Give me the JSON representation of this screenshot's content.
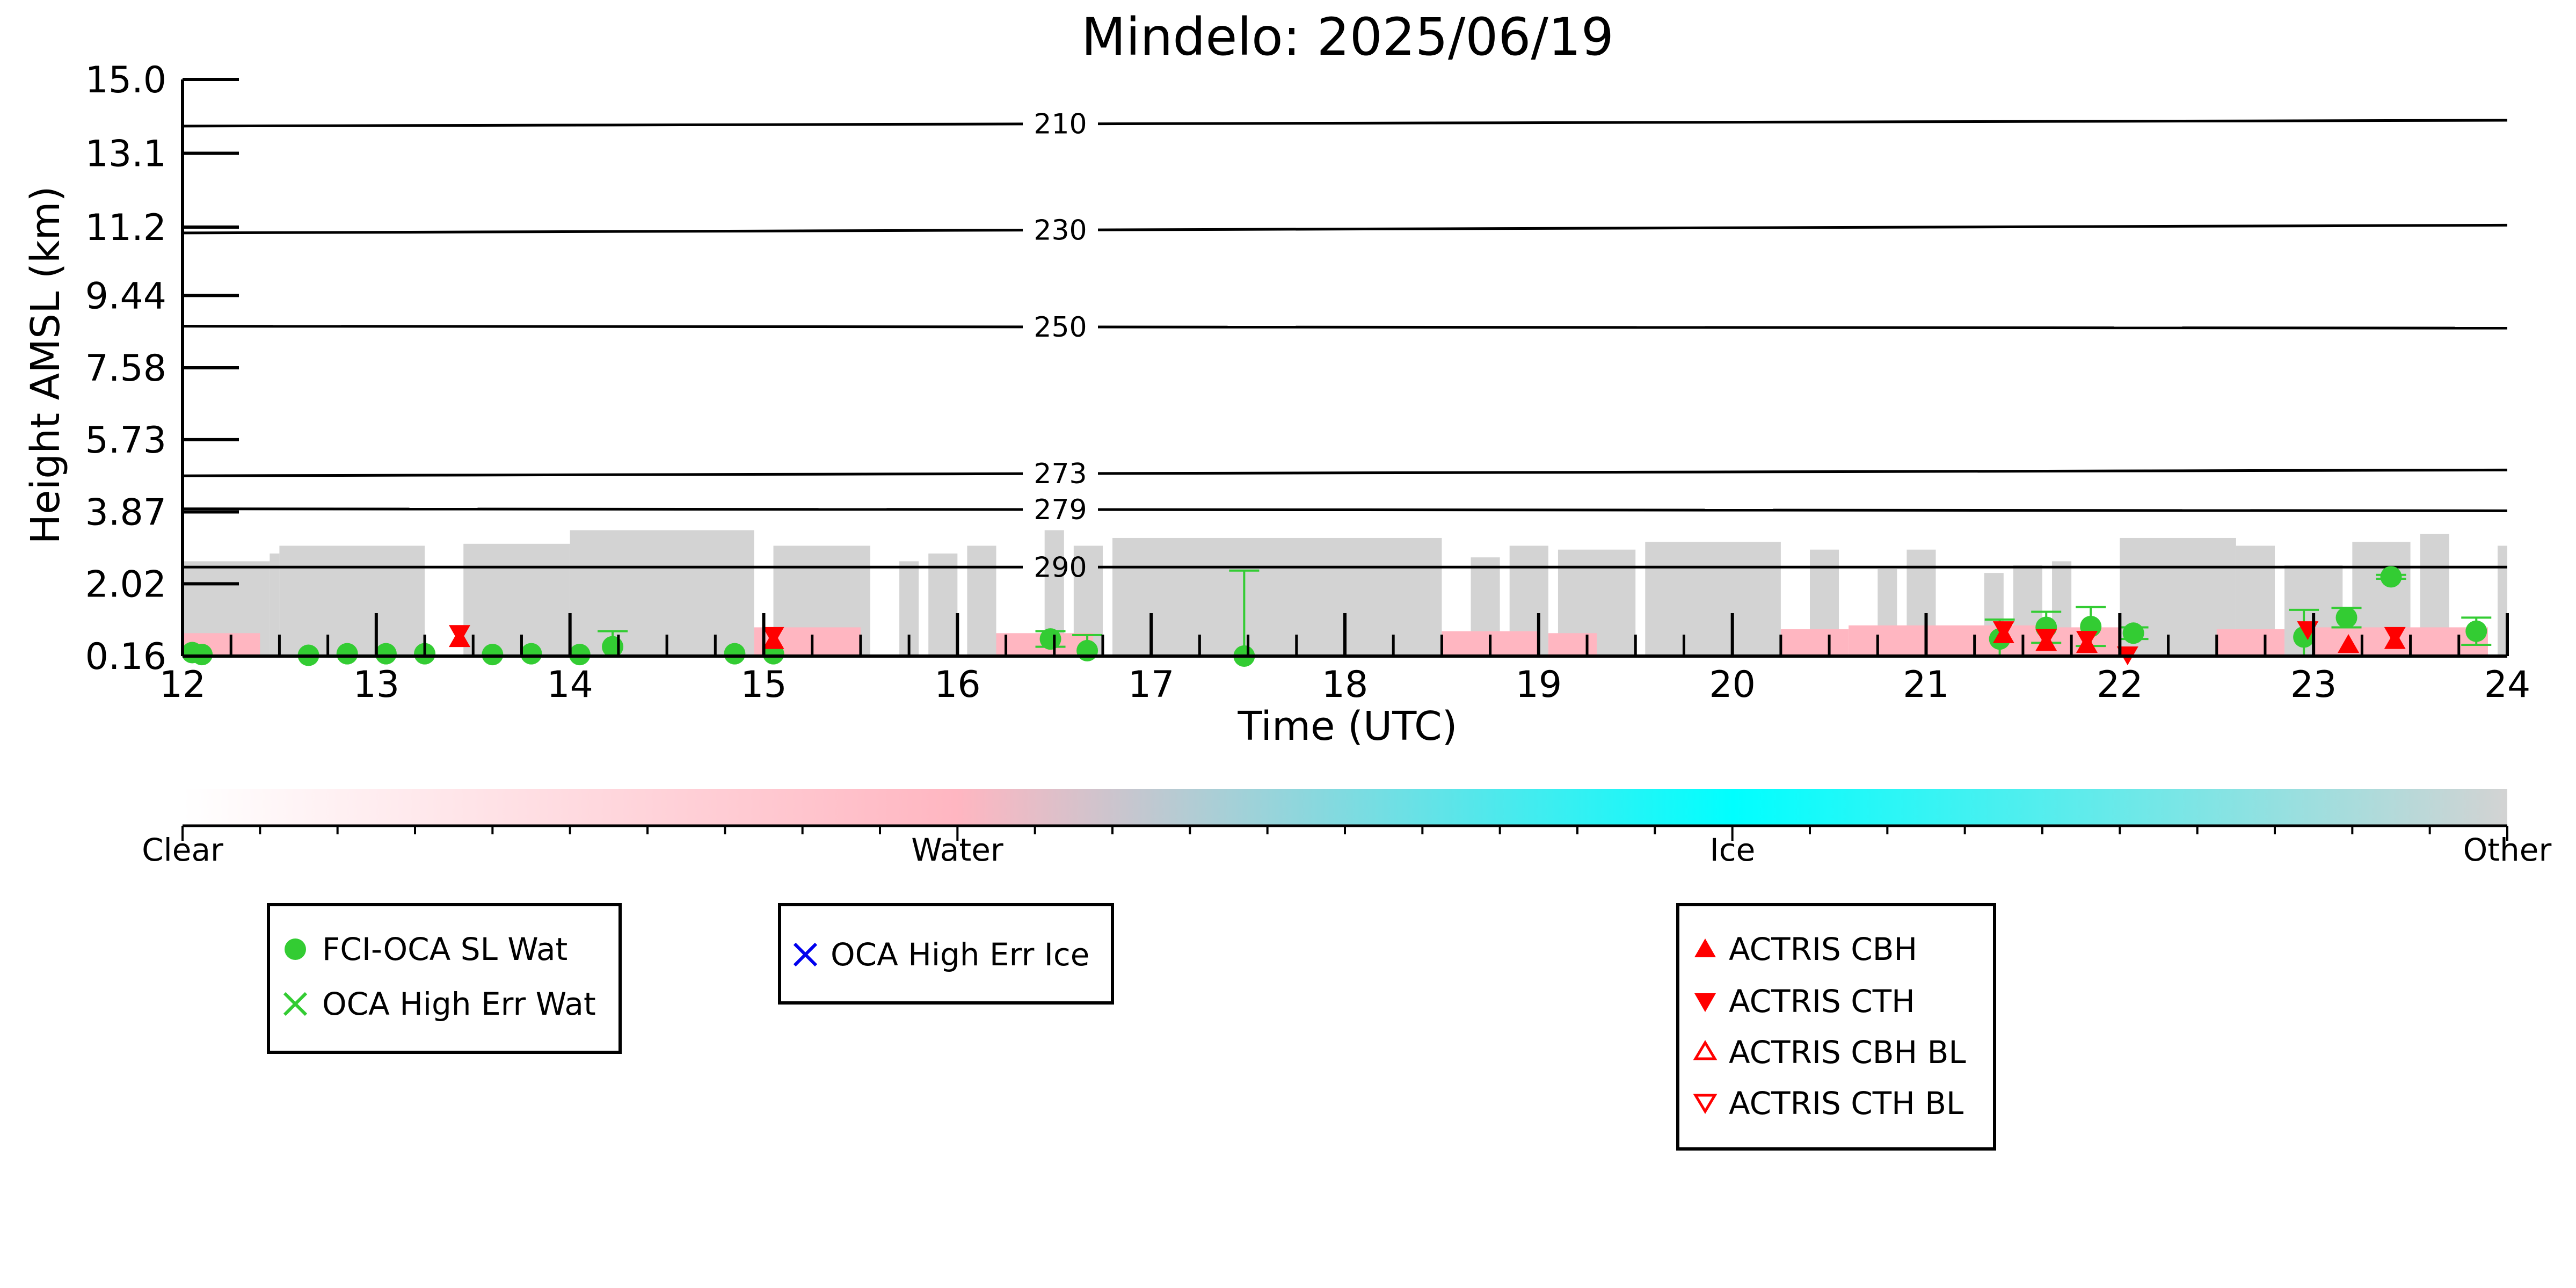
{
  "chart_data": {
    "type": "scatter",
    "title": "Mindelo: 2025/06/19",
    "xlabel": "Time (UTC)",
    "ylabel": "Height AMSL (km)",
    "xlim": [
      12,
      24
    ],
    "ylim": [
      0.16,
      15.0
    ],
    "x_ticks": [
      12,
      13,
      14,
      15,
      16,
      17,
      18,
      19,
      20,
      21,
      22,
      23,
      24
    ],
    "y_ticks": [
      "0.16",
      "2.02",
      "3.87",
      "5.73",
      "7.58",
      "9.44",
      "11.2",
      "13.1",
      "15.0"
    ],
    "y_tick_values": [
      0.16,
      2.02,
      3.87,
      5.73,
      7.58,
      9.44,
      11.2,
      13.1,
      15.0
    ],
    "grid": false,
    "background_cloud_mask": {
      "description_colors": {
        "clear": "#ffffff",
        "water": "#ffb6c1",
        "ice": "#00ffff",
        "other": "#d3d3d3"
      },
      "other_segments": [
        {
          "start": 12.0,
          "end": 12.45,
          "top": 2.6
        },
        {
          "start": 12.45,
          "end": 12.5,
          "top": 2.8
        },
        {
          "start": 12.5,
          "end": 13.25,
          "top": 3.0
        },
        {
          "start": 13.45,
          "end": 14.0,
          "top": 3.05
        },
        {
          "start": 14.0,
          "end": 14.95,
          "top": 3.4
        },
        {
          "start": 15.05,
          "end": 15.55,
          "top": 3.0
        },
        {
          "start": 15.7,
          "end": 15.8,
          "top": 2.6
        },
        {
          "start": 15.85,
          "end": 16.0,
          "top": 2.8
        },
        {
          "start": 16.05,
          "end": 16.2,
          "top": 3.0
        },
        {
          "start": 16.45,
          "end": 16.55,
          "top": 3.4
        },
        {
          "start": 16.6,
          "end": 16.75,
          "top": 3.0
        },
        {
          "start": 16.8,
          "end": 18.5,
          "top": 3.2
        },
        {
          "start": 18.65,
          "end": 18.8,
          "top": 2.7
        },
        {
          "start": 18.85,
          "end": 19.05,
          "top": 3.0
        },
        {
          "start": 19.1,
          "end": 19.5,
          "top": 2.9
        },
        {
          "start": 19.55,
          "end": 20.25,
          "top": 3.1
        },
        {
          "start": 20.4,
          "end": 20.55,
          "top": 2.9
        },
        {
          "start": 20.75,
          "end": 20.85,
          "top": 2.4
        },
        {
          "start": 20.9,
          "end": 21.05,
          "top": 2.9
        },
        {
          "start": 21.3,
          "end": 21.4,
          "top": 2.3
        },
        {
          "start": 21.45,
          "end": 21.6,
          "top": 2.5
        },
        {
          "start": 21.65,
          "end": 21.75,
          "top": 2.6
        },
        {
          "start": 22.0,
          "end": 22.6,
          "top": 3.2
        },
        {
          "start": 22.6,
          "end": 22.8,
          "top": 3.0
        },
        {
          "start": 22.85,
          "end": 23.15,
          "top": 2.5
        },
        {
          "start": 23.2,
          "end": 23.5,
          "top": 3.1
        },
        {
          "start": 23.55,
          "end": 23.7,
          "top": 3.3
        },
        {
          "start": 23.95,
          "end": 24.0,
          "top": 3.0
        }
      ],
      "water_segments": [
        {
          "start": 12.0,
          "end": 12.4,
          "top": 0.75
        },
        {
          "start": 14.95,
          "end": 15.5,
          "top": 0.9
        },
        {
          "start": 16.2,
          "end": 16.7,
          "top": 0.75
        },
        {
          "start": 18.5,
          "end": 19.0,
          "top": 0.8
        },
        {
          "start": 19.05,
          "end": 19.3,
          "top": 0.75
        },
        {
          "start": 20.25,
          "end": 20.6,
          "top": 0.85
        },
        {
          "start": 20.6,
          "end": 21.6,
          "top": 0.95
        },
        {
          "start": 21.6,
          "end": 22.0,
          "top": 0.9
        },
        {
          "start": 22.5,
          "end": 22.85,
          "top": 0.85
        },
        {
          "start": 23.0,
          "end": 23.9,
          "top": 0.9
        }
      ]
    },
    "contours": [
      {
        "label": "210",
        "y_start": 13.8,
        "y_end": 13.95
      },
      {
        "label": "230",
        "y_start": 11.05,
        "y_end": 11.25
      },
      {
        "label": "250",
        "y_start": 8.65,
        "y_end": 8.6
      },
      {
        "label": "273",
        "y_start": 4.8,
        "y_end": 4.95
      },
      {
        "label": "279",
        "y_start": 3.95,
        "y_end": 3.9
      },
      {
        "label": "290",
        "y_start": 2.45,
        "y_end": 2.45
      }
    ],
    "series": [
      {
        "name": "FCI-OCA SL Wat",
        "marker": "circle",
        "color": "#33cc33",
        "points": [
          {
            "x": 12.05,
            "y": 0.25
          },
          {
            "x": 12.1,
            "y": 0.2
          },
          {
            "x": 12.65,
            "y": 0.18
          },
          {
            "x": 12.85,
            "y": 0.22
          },
          {
            "x": 13.05,
            "y": 0.22
          },
          {
            "x": 13.25,
            "y": 0.22
          },
          {
            "x": 13.6,
            "y": 0.2
          },
          {
            "x": 13.8,
            "y": 0.22
          },
          {
            "x": 14.05,
            "y": 0.2
          },
          {
            "x": 14.22,
            "y": 0.4,
            "err": 0.4
          },
          {
            "x": 14.85,
            "y": 0.22
          },
          {
            "x": 15.05,
            "y": 0.22
          },
          {
            "x": 16.48,
            "y": 0.6,
            "err": 0.2
          },
          {
            "x": 16.67,
            "y": 0.3,
            "err": 0.4
          },
          {
            "x": 17.48,
            "y": 0.16,
            "err": 2.2
          },
          {
            "x": 21.38,
            "y": 0.6,
            "err": 0.5
          },
          {
            "x": 21.62,
            "y": 0.9,
            "err": 0.4
          },
          {
            "x": 21.85,
            "y": 0.92,
            "err": 0.5
          },
          {
            "x": 22.07,
            "y": 0.75,
            "err": 0.15
          },
          {
            "x": 22.95,
            "y": 0.65,
            "err": 0.7
          },
          {
            "x": 23.17,
            "y": 1.15,
            "err": 0.25
          },
          {
            "x": 23.4,
            "y": 2.2,
            "err": 0.05
          },
          {
            "x": 23.84,
            "y": 0.8,
            "err": 0.35
          }
        ]
      },
      {
        "name": "OCA High Err Wat",
        "marker": "x",
        "color": "#33cc33",
        "points": []
      },
      {
        "name": "OCA High Err Ice",
        "marker": "x",
        "color": "#0000ee",
        "points": []
      },
      {
        "name": "ACTRIS CBH",
        "marker": "triangle-up",
        "color": "#ff0000",
        "points": [
          {
            "x": 13.43,
            "y": 0.6
          },
          {
            "x": 15.05,
            "y": 0.55
          },
          {
            "x": 21.4,
            "y": 0.7
          },
          {
            "x": 21.62,
            "y": 0.5
          },
          {
            "x": 21.83,
            "y": 0.45
          },
          {
            "x": 23.18,
            "y": 0.45
          },
          {
            "x": 23.42,
            "y": 0.55
          }
        ]
      },
      {
        "name": "ACTRIS CTH",
        "marker": "triangle-down",
        "color": "#ff0000",
        "points": [
          {
            "x": 13.43,
            "y": 0.75
          },
          {
            "x": 15.05,
            "y": 0.7
          },
          {
            "x": 21.4,
            "y": 0.85
          },
          {
            "x": 21.62,
            "y": 0.65
          },
          {
            "x": 21.83,
            "y": 0.6
          },
          {
            "x": 22.04,
            "y": 0.2
          },
          {
            "x": 22.97,
            "y": 0.85
          },
          {
            "x": 23.42,
            "y": 0.7
          }
        ]
      },
      {
        "name": "ACTRIS CBH BL",
        "marker": "triangle-up-open",
        "color": "#ff0000",
        "points": []
      },
      {
        "name": "ACTRIS CTH BL",
        "marker": "triangle-down-open",
        "color": "#ff0000",
        "points": []
      }
    ],
    "colorbar": {
      "labels": [
        "Clear",
        "Water",
        "Ice",
        "Other"
      ],
      "colors": [
        "#ffffff",
        "#ffb6c1",
        "#00ffff",
        "#d3d3d3"
      ]
    },
    "legends": [
      {
        "entries": [
          "FCI-OCA SL Wat",
          "OCA High Err Wat"
        ]
      },
      {
        "entries": [
          "OCA High Err Ice"
        ]
      },
      {
        "entries": [
          "ACTRIS CBH",
          "ACTRIS CTH",
          "ACTRIS CBH BL",
          "ACTRIS CTH BL"
        ]
      }
    ]
  }
}
